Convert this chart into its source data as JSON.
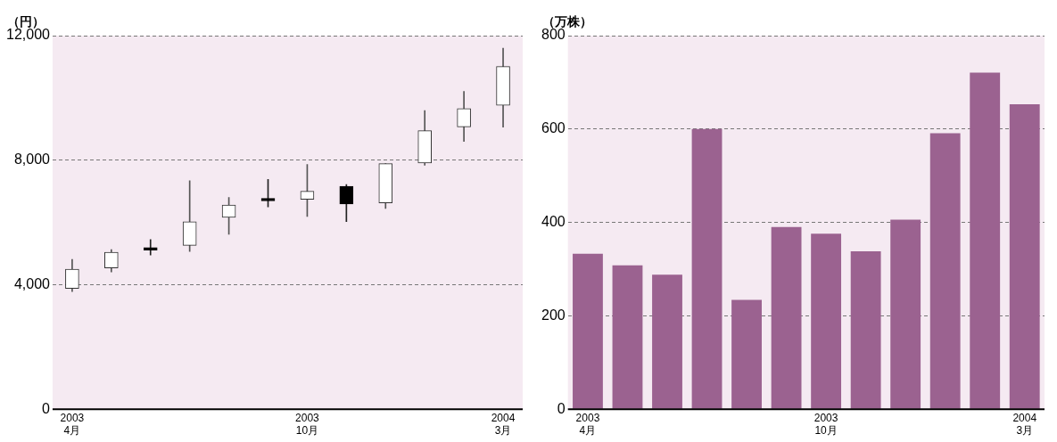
{
  "chart_data": [
    {
      "type": "candlestick",
      "ylabel": "（円）",
      "categories": [
        "2003\n4月",
        null,
        null,
        null,
        null,
        null,
        "2003\n10月",
        null,
        null,
        null,
        null,
        "2004\n3月"
      ],
      "ohlc": [
        [
          3880,
          4810,
          3780,
          4500
        ],
        [
          4540,
          5130,
          4410,
          5040
        ],
        [
          5190,
          5450,
          4950,
          5110
        ],
        [
          5260,
          7340,
          5070,
          6020
        ],
        [
          6160,
          6800,
          5620,
          6560
        ],
        [
          6770,
          7380,
          6500,
          6690
        ],
        [
          6740,
          7860,
          6190,
          7000
        ],
        [
          7160,
          7220,
          6030,
          6590
        ],
        [
          6630,
          7890,
          6450,
          7890
        ],
        [
          7910,
          9590,
          7840,
          8950
        ],
        [
          9070,
          10210,
          8600,
          9660
        ],
        [
          9760,
          11600,
          9060,
          11010
        ]
      ],
      "ylim": [
        0,
        12000
      ],
      "yticks": [
        0,
        {
          "value": 4000,
          "label": "4,000"
        },
        {
          "value": 8000,
          "label": "8,000"
        },
        {
          "value": 12000,
          "label": "12,000"
        }
      ],
      "grid": "y"
    },
    {
      "type": "bar",
      "ylabel": "（万株）",
      "categories": [
        "2003\n4月",
        null,
        null,
        null,
        null,
        null,
        "2003\n10月",
        null,
        null,
        null,
        null,
        "2004\n3月"
      ],
      "values": [
        333,
        308,
        288,
        600,
        234,
        390,
        376,
        338,
        406,
        591,
        721,
        653
      ],
      "color": "#9b6290",
      "ylim": [
        0,
        800
      ],
      "yticks": [
        0,
        200,
        400,
        600,
        800
      ],
      "grid": "y"
    }
  ]
}
